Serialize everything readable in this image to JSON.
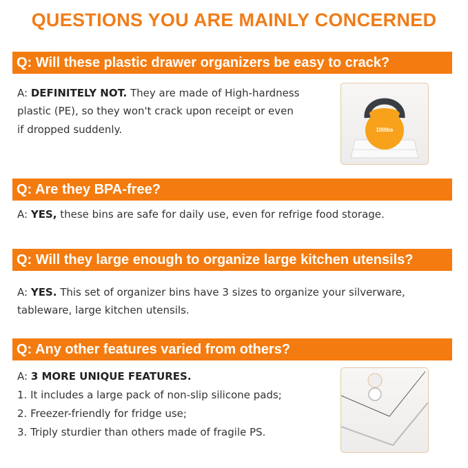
{
  "title": "QUESTIONS YOU ARE MAINLY CONCERNED",
  "faq": [
    {
      "q": "Q: Will these plastic drawer organizers be easy to crack?",
      "a_prefix": "A: ",
      "a_bold": "DEFINITELY NOT.",
      "a_lines": [
        " They are made of High-hardness",
        "plastic (PE), so they won't crack upon receipt or even",
        "if dropped suddenly."
      ],
      "image_label": "100lbs"
    },
    {
      "q": "Q: Are they BPA-free?",
      "a_prefix": "A: ",
      "a_bold": "YES,",
      "a_lines": [
        " these bins are safe for daily use, even for refrige food storage."
      ]
    },
    {
      "q": "Q: Will they large enough to organize large kitchen utensils?",
      "a_prefix": "A: ",
      "a_bold": "YES.",
      "a_lines": [
        " This set of organizer bins have 3 sizes to organize your silverware,",
        "tableware, large kitchen utensils."
      ]
    },
    {
      "q": "Q: Any other features varied from others?",
      "a_prefix": "A: ",
      "a_bold": "3 MORE UNIQUE FEATURES.",
      "a_lines": [
        "1. It includes a large pack of non-slip silicone pads;",
        "2. Freezer-friendly for fridge use;",
        "3. Triply sturdier than others made of fragile PS."
      ]
    }
  ],
  "colors": {
    "accent": "#f47b0f",
    "title": "#f07c18"
  }
}
